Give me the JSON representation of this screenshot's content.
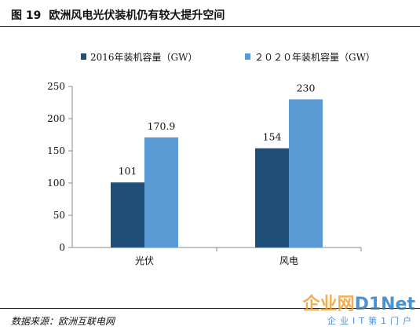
{
  "figure": {
    "number": "图 19",
    "title": "欧洲风电光伏装机仍有较大提升空间",
    "source": "数据来源：欧洲互联电网"
  },
  "watermark": {
    "logo_part1": "企业网",
    "logo_part2": "D1Net",
    "tagline": "企业IT第1门户"
  },
  "colors": {
    "series_2016": "#1f4e79",
    "series_2020": "#5b9bd5",
    "axis": "#888888"
  },
  "chart_data": {
    "type": "bar",
    "categories": [
      "光伏",
      "风电"
    ],
    "series": [
      {
        "name": "2016年装机容量（GW）",
        "values": [
          101,
          154
        ],
        "labels": [
          "101",
          "154"
        ]
      },
      {
        "name": "２０２０年装机容量（GW）",
        "values": [
          170.9,
          230
        ],
        "labels": [
          "170.9",
          "230"
        ]
      }
    ],
    "ylim": [
      0,
      250
    ],
    "yticks": [
      0,
      50,
      100,
      150,
      200,
      250
    ],
    "grid": false,
    "legend_position": "top",
    "title": "",
    "xlabel": "",
    "ylabel": ""
  }
}
